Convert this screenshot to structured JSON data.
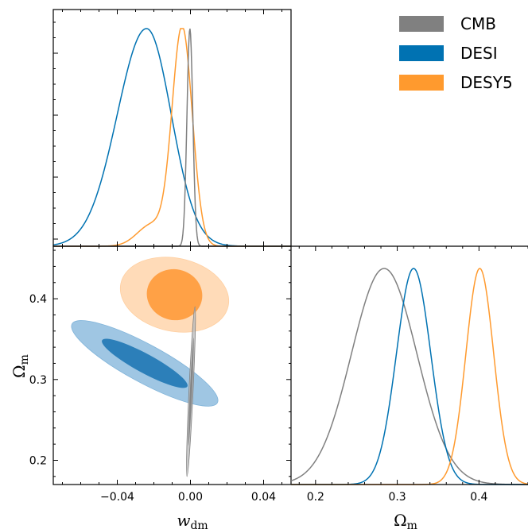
{
  "chart_data": {
    "type": "triangle",
    "series": [
      {
        "name": "CMB",
        "color": "#808080"
      },
      {
        "name": "DESI",
        "color": "#0072b2"
      },
      {
        "name": "DESY5",
        "color": "#ff9a2e"
      }
    ],
    "panels": {
      "wdm_marginal": {
        "xlim": [
          -0.075,
          0.055
        ],
        "curves": {
          "CMB": {
            "mean": -0.0003,
            "sigma": 0.0016
          },
          "DESI": {
            "mean": -0.024,
            "sigma_left": 0.016,
            "sigma_right": 0.0135
          },
          "DESY5": {
            "mean": -0.0045,
            "sigma": 0.0055,
            "shoulder": -0.021
          }
        }
      },
      "omega_marginal": {
        "xlim": [
          0.17,
          0.46
        ],
        "xticks": [
          0.2,
          0.3,
          0.4
        ],
        "xtick_labels": [
          "0.2",
          "0.3",
          "0.4"
        ],
        "curves": {
          "CMB": {
            "mean": 0.284,
            "sigma": 0.04
          },
          "DESI": {
            "mean": 0.32,
            "sigma": 0.021
          },
          "DESY5": {
            "mean": 0.401,
            "sigma": 0.017
          }
        }
      },
      "joint": {
        "xlim": [
          -0.075,
          0.055
        ],
        "ylim": [
          0.17,
          0.465
        ],
        "xticks": [
          -0.04,
          0.0,
          0.04
        ],
        "xtick_labels": [
          "−0.04",
          "0.00",
          "0.04"
        ],
        "yticks": [
          0.2,
          0.3,
          0.4
        ],
        "ytick_labels": [
          "0.2",
          "0.3",
          "0.4"
        ],
        "contours": {
          "CMB": {
            "cx": 0.0003,
            "cy": 0.285,
            "angle": -87.3,
            "rx68": 0.0016,
            "ry68": 0.06,
            "rx95": 0.0024,
            "ry95": 0.1
          },
          "DESI": {
            "cx": -0.025,
            "cy": 0.32,
            "angle": 28.5,
            "rx68": 0.022,
            "ry68": 0.011,
            "rx95": 0.039,
            "ry95": 0.021
          },
          "DESY5": {
            "cx": -0.0087,
            "cy": 0.405,
            "angle": 12,
            "rx68": 0.0133,
            "ry68": 0.031,
            "rx95": 0.0225,
            "ry95": 0.05
          }
        }
      }
    },
    "xlabel_bottom_left": "w",
    "xlabel_bottom_left_sub": "dm",
    "xlabel_bottom_right": "Ω",
    "xlabel_bottom_right_sub": "m",
    "ylabel_left": "Ω",
    "ylabel_left_sub": "m"
  }
}
